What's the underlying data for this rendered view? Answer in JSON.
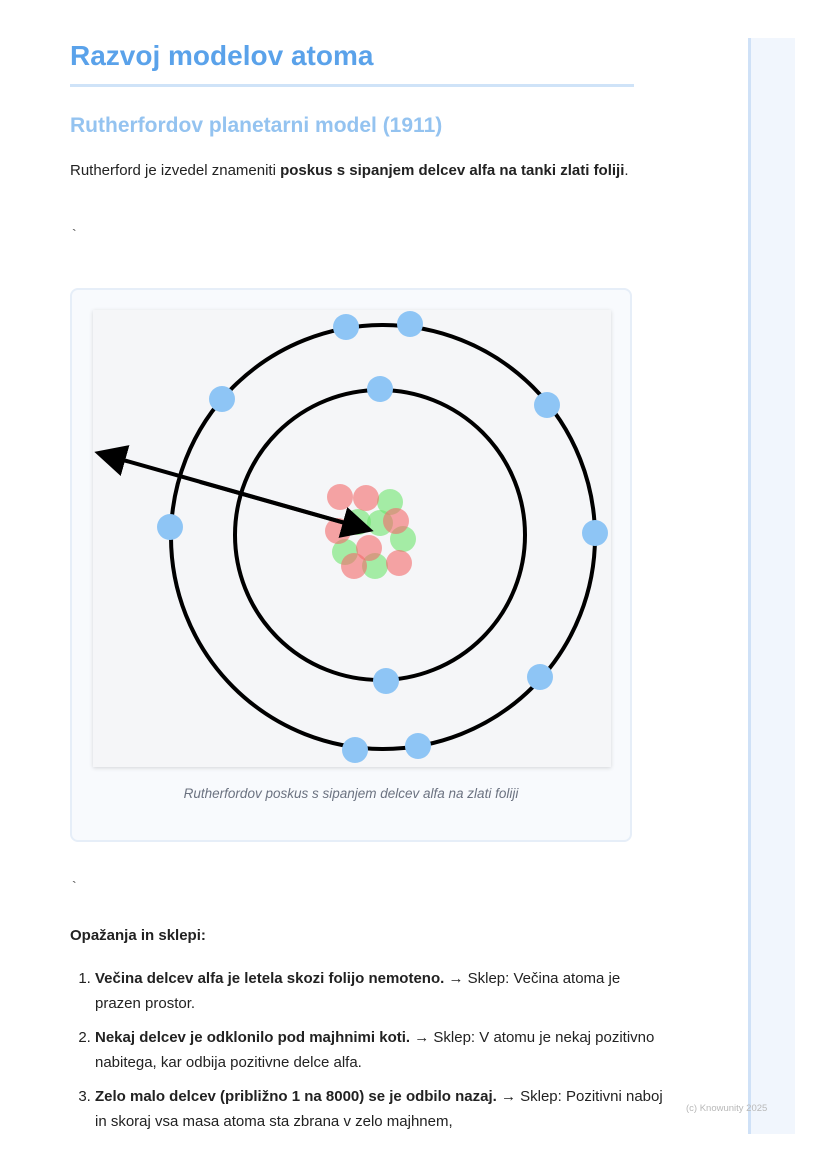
{
  "title": "Razvoj modelov atoma",
  "section_title": "Rutherfordov planetarni model (1911)",
  "intro": {
    "text_before": "Rutherford je izvedel znameniti ",
    "bold": "poskus s sipanjem delcev alfa na tanki zlati foliji",
    "text_after": "."
  },
  "backtick_1": "`",
  "backtick_2": "`",
  "figure": {
    "caption": "Rutherfordov poskus s sipanjem delcev alfa na zlati foliji",
    "colors": {
      "electron": "#8ec5f5",
      "proton": "#f46a6a",
      "neutron": "#6ee66e",
      "orbit": "#000000"
    }
  },
  "observations": {
    "title": "Opažanja in sklepi:",
    "items": [
      {
        "bold": "Večina delcev alfa je letela skozi folijo nemoteno.",
        "rest": " → Sklep: Večina atoma je prazen prostor."
      },
      {
        "bold": "Nekaj delcev je odklonilo pod majhnimi koti.",
        "rest": " → Sklep: V atomu je nekaj pozitivno nabitega, kar odbija pozitivne delce alfa."
      },
      {
        "bold": "Zelo malo delcev (približno 1 na 8000) se je odbilo nazaj.",
        "rest": " → Sklep: Pozitivni naboj in skoraj vsa masa atoma sta zbrana v zelo majhnem,"
      }
    ]
  },
  "copyright": "(c) Knowunity 2025"
}
